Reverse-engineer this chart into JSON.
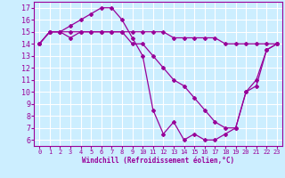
{
  "xlabel": "Windchill (Refroidissement éolien,°C)",
  "background_color": "#cceeff",
  "grid_color": "#ffffff",
  "line_color": "#990099",
  "xlim": [
    -0.5,
    23.5
  ],
  "ylim": [
    5.5,
    17.5
  ],
  "xticks": [
    0,
    1,
    2,
    3,
    4,
    5,
    6,
    7,
    8,
    9,
    10,
    11,
    12,
    13,
    14,
    15,
    16,
    17,
    18,
    19,
    20,
    21,
    22,
    23
  ],
  "yticks": [
    6,
    7,
    8,
    9,
    10,
    11,
    12,
    13,
    14,
    15,
    16,
    17
  ],
  "series": [
    {
      "x": [
        0,
        1,
        2,
        3,
        4,
        5,
        6,
        7,
        8,
        9,
        10,
        11,
        12,
        13,
        14,
        15,
        16,
        17,
        18,
        19,
        20,
        21,
        22,
        23
      ],
      "y": [
        14,
        15,
        15,
        15.5,
        16,
        16.5,
        17,
        17,
        16,
        14.5,
        13,
        8.5,
        6.5,
        7.5,
        6,
        6.5,
        6,
        6,
        6.5,
        7,
        10,
        10.5,
        13.5,
        14
      ]
    },
    {
      "x": [
        0,
        1,
        2,
        3,
        4,
        5,
        6,
        7,
        8,
        9,
        10,
        11,
        12,
        13,
        14,
        15,
        16,
        17,
        18,
        19,
        20,
        21,
        22,
        23
      ],
      "y": [
        14,
        15,
        15,
        15,
        15,
        15,
        15,
        15,
        15,
        15,
        15,
        15,
        15,
        14.5,
        14.5,
        14.5,
        14.5,
        14.5,
        14,
        14,
        14,
        14,
        14,
        14
      ]
    },
    {
      "x": [
        0,
        1,
        2,
        3,
        4,
        5,
        6,
        7,
        8,
        9,
        10,
        11,
        12,
        13,
        14,
        15,
        16,
        17,
        18,
        19,
        20,
        21,
        22,
        23
      ],
      "y": [
        14,
        15,
        15,
        14.5,
        15,
        15,
        15,
        15,
        15,
        14,
        14,
        13,
        12,
        11,
        10.5,
        9.5,
        8.5,
        7.5,
        7,
        7,
        10,
        11,
        13.5,
        14
      ]
    }
  ]
}
